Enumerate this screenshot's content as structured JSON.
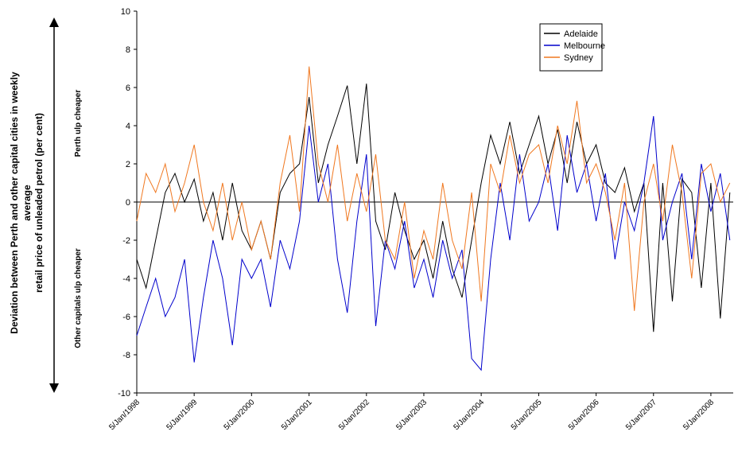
{
  "chart_data": {
    "type": "line",
    "ylabel": [
      "Deviation between Perth and other capital cities in weekly",
      "average",
      "retail price of unleaded petrol (per cent)"
    ],
    "annotations": [
      "Perth  ulp cheaper",
      "Other capitals  ulp cheaper"
    ],
    "x": [
      "1998-01-05",
      "1998-03-05",
      "1998-05-05",
      "1998-07-05",
      "1998-09-05",
      "1998-11-05",
      "1999-01-05",
      "1999-03-05",
      "1999-05-05",
      "1999-07-05",
      "1999-09-05",
      "1999-11-05",
      "2000-01-05",
      "2000-03-05",
      "2000-05-05",
      "2000-07-05",
      "2000-09-05",
      "2000-11-05",
      "2001-01-05",
      "2001-03-05",
      "2001-05-05",
      "2001-07-05",
      "2001-09-05",
      "2001-11-05",
      "2002-01-05",
      "2002-03-05",
      "2002-05-05",
      "2002-07-05",
      "2002-09-05",
      "2002-11-05",
      "2003-01-05",
      "2003-03-05",
      "2003-05-05",
      "2003-07-05",
      "2003-09-05",
      "2003-11-05",
      "2004-01-05",
      "2004-03-05",
      "2004-05-05",
      "2004-07-05",
      "2004-09-05",
      "2004-11-05",
      "2005-01-05",
      "2005-03-05",
      "2005-05-05",
      "2005-07-05",
      "2005-09-05",
      "2005-11-05",
      "2006-01-05",
      "2006-03-05",
      "2006-05-05",
      "2006-07-05",
      "2006-09-05",
      "2006-11-05",
      "2007-01-05",
      "2007-03-05",
      "2007-05-05",
      "2007-07-05",
      "2007-09-05",
      "2007-11-05",
      "2008-01-05",
      "2008-03-05",
      "2008-05-05"
    ],
    "series": [
      {
        "name": "Adelaide",
        "color": "#000000",
        "values": [
          -3,
          -4.5,
          -2,
          0.5,
          1.5,
          0,
          1.2,
          -1,
          0.5,
          -2,
          1,
          -1.5,
          -2.5,
          -1,
          -3,
          0.5,
          1.5,
          2,
          5.5,
          1,
          3,
          4.5,
          6.1,
          2,
          6.2,
          -1,
          -2.5,
          0.5,
          -1.5,
          -3,
          -2,
          -4,
          -1,
          -3.5,
          -5,
          -2,
          1,
          3.5,
          2,
          4.2,
          1.5,
          3,
          4.5,
          2,
          3.8,
          1,
          4.2,
          2,
          3,
          1,
          0.5,
          1.8,
          -0.5,
          1,
          -6.8,
          1,
          -5.2,
          1.2,
          0.5,
          -4.5,
          1,
          -6.1,
          0.5
        ]
      },
      {
        "name": "Melbourne",
        "color": "#0000cc",
        "values": [
          -7,
          -5.5,
          -4,
          -6,
          -5,
          -3,
          -8.4,
          -5,
          -2,
          -4,
          -7.5,
          -3,
          -4,
          -3,
          -5.5,
          -2,
          -3.5,
          -1,
          4,
          0,
          2,
          -3,
          -5.8,
          -1,
          2.5,
          -6.5,
          -2,
          -3.5,
          -1,
          -4.5,
          -3,
          -5,
          -2,
          -4,
          -2.5,
          -8.2,
          -8.8,
          -3,
          1,
          -2,
          2.5,
          -1,
          0,
          2,
          -1.5,
          3.5,
          0.5,
          2,
          -1,
          1.5,
          -3,
          0,
          -1.5,
          1,
          4.5,
          -2,
          0,
          1.5,
          -3,
          2,
          -0.5,
          1.5,
          -2
        ]
      },
      {
        "name": "Sydney",
        "color": "#f07820",
        "values": [
          -1,
          1.5,
          0.5,
          2,
          -0.5,
          1,
          3,
          0,
          -1.5,
          1,
          -2,
          0,
          -2.5,
          -1,
          -3,
          1,
          3.5,
          -0.5,
          7.1,
          2,
          0,
          3,
          -1,
          1.5,
          -0.5,
          2.5,
          -2,
          -3,
          0,
          -4,
          -1.5,
          -3,
          1,
          -2,
          -3.5,
          0.5,
          -5.2,
          2,
          0.5,
          3.5,
          1,
          2.5,
          3,
          1,
          4,
          2,
          5.3,
          1,
          2,
          0.5,
          -2,
          1,
          -5.7,
          0,
          2,
          -1,
          3,
          0.5,
          -4,
          1.5,
          2,
          0,
          1
        ]
      }
    ],
    "xlim": [
      "1998-01-05",
      "2008-05-26"
    ],
    "xticks": [
      {
        "value": "1998-01-05",
        "label": "5/Jan/1998"
      },
      {
        "value": "1999-01-05",
        "label": "5/Jan/1999"
      },
      {
        "value": "2000-01-05",
        "label": "5/Jan/2000"
      },
      {
        "value": "2001-01-05",
        "label": "5/Jan/2001"
      },
      {
        "value": "2002-01-05",
        "label": "5/Jan/2002"
      },
      {
        "value": "2003-01-05",
        "label": "5/Jan/2003"
      },
      {
        "value": "2004-01-05",
        "label": "5/Jan/2004"
      },
      {
        "value": "2005-01-05",
        "label": "5/Jan/2005"
      },
      {
        "value": "2006-01-05",
        "label": "5/Jan/2006"
      },
      {
        "value": "2007-01-05",
        "label": "5/Jan/2007"
      },
      {
        "value": "2008-01-05",
        "label": "5/Jan/2008"
      }
    ],
    "ylim": [
      -10,
      10
    ],
    "yticks": [
      -10,
      -8,
      -6,
      -4,
      -2,
      0,
      2,
      4,
      6,
      8,
      10
    ],
    "grid": false,
    "legend": "upper right"
  }
}
